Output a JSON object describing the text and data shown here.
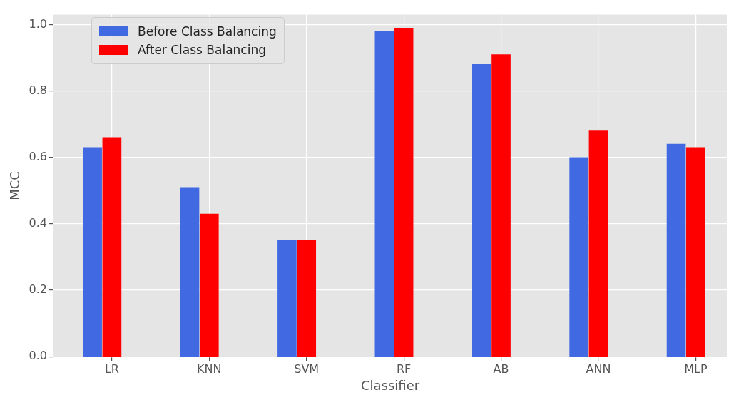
{
  "chart_data": {
    "type": "bar",
    "xlabel": "Classifier",
    "ylabel": "MCC",
    "categories": [
      "LR",
      "KNN",
      "SVM",
      "RF",
      "AB",
      "ANN",
      "MLP"
    ],
    "series": [
      {
        "name": "Before Class Balancing",
        "color": "#4169e1",
        "values": [
          0.63,
          0.51,
          0.35,
          0.98,
          0.88,
          0.6,
          0.64
        ]
      },
      {
        "name": "After Class Balancing",
        "color": "#ff0000",
        "values": [
          0.66,
          0.43,
          0.35,
          0.99,
          0.91,
          0.68,
          0.63
        ]
      }
    ],
    "ylim": [
      0,
      1.03
    ],
    "yticks": [
      {
        "value": 0,
        "label": "0.0"
      },
      {
        "value": 0.2,
        "label": "0.2"
      },
      {
        "value": 0.4,
        "label": "0.4"
      },
      {
        "value": 0.6,
        "label": "0.6"
      },
      {
        "value": 0.8,
        "label": "0.8"
      },
      {
        "value": 1,
        "label": "1.0"
      }
    ],
    "grid": true,
    "legend": "top left"
  }
}
